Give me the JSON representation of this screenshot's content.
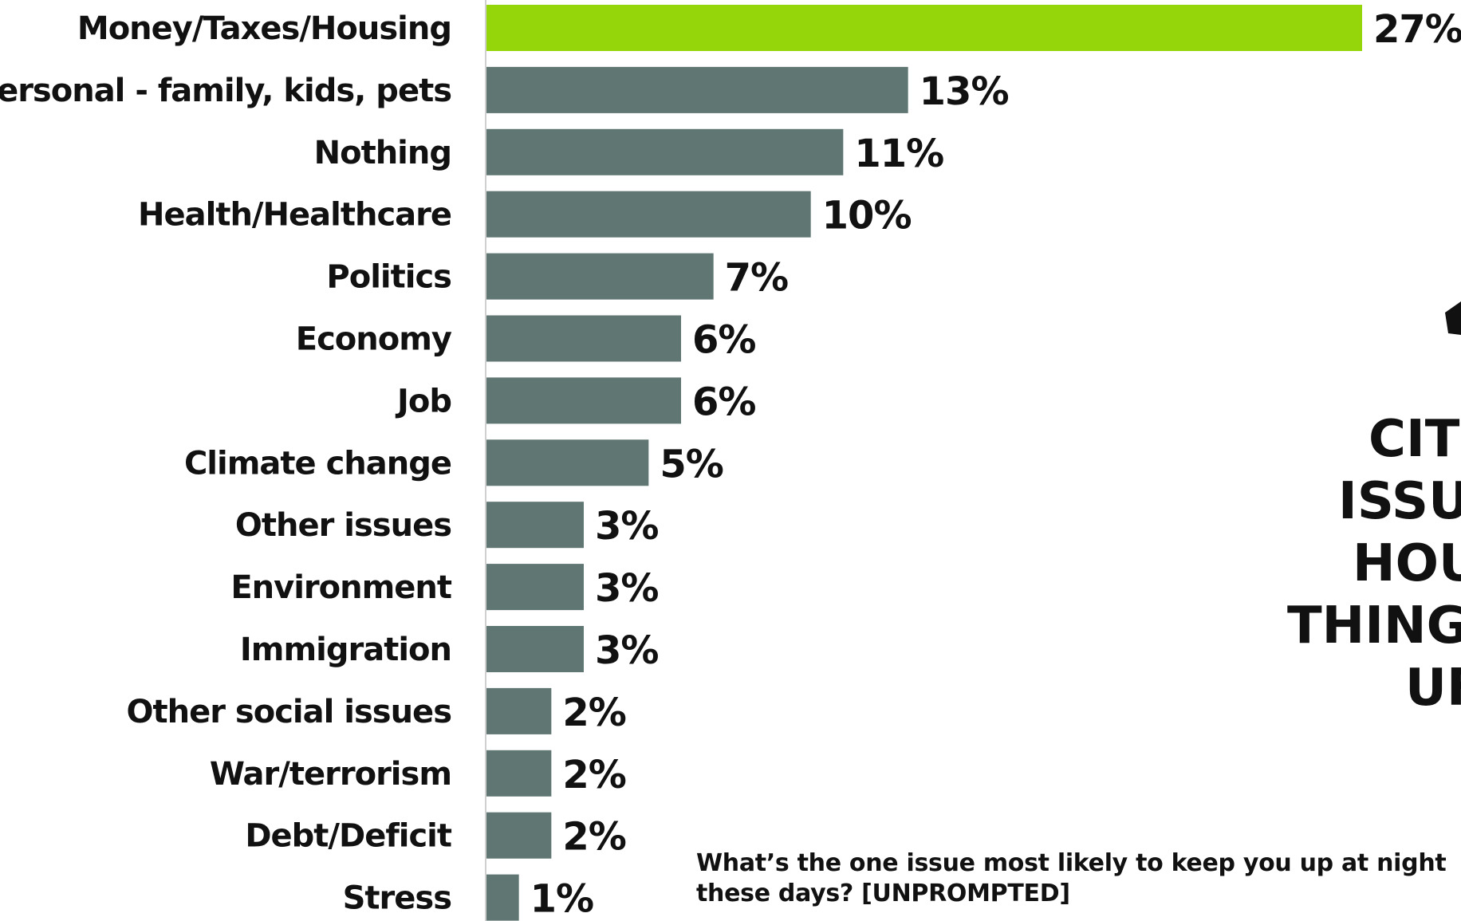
{
  "chart_data": {
    "type": "bar",
    "orientation": "horizontal",
    "categories": [
      "Money/Taxes/Housing",
      "Personal - family, kids, pets",
      "Nothing",
      "Health/Healthcare",
      "Politics",
      "Economy",
      "Job",
      "Climate change",
      "Other issues",
      "Environment",
      "Immigration",
      "Other social issues",
      "War/terrorism",
      "Debt/Deficit",
      "Stress"
    ],
    "values": [
      27,
      13,
      11,
      10,
      7,
      6,
      6,
      5,
      3,
      3,
      3,
      2,
      2,
      2,
      1
    ],
    "value_labels": [
      "27%",
      "13%",
      "11%",
      "10%",
      "7%",
      "6%",
      "6%",
      "5%",
      "3%",
      "3%",
      "3%",
      "2%",
      "2%",
      "2%",
      "1%"
    ],
    "unit": "%",
    "xlim": [
      0,
      27
    ],
    "highlight_index": 0,
    "colors": {
      "highlight": "#94D60A",
      "bar": "#5F7672",
      "axis": "#cccccc",
      "text": "#111111"
    },
    "grid": false,
    "legend": "none",
    "question_lines": [
      "What’s the one issue most likely to keep you up at night",
      "these days? [UNPROMPTED]"
    ],
    "callout_lines": [
      "CITE",
      "ISSUI",
      "HOU",
      "THING",
      "UF"
    ]
  }
}
